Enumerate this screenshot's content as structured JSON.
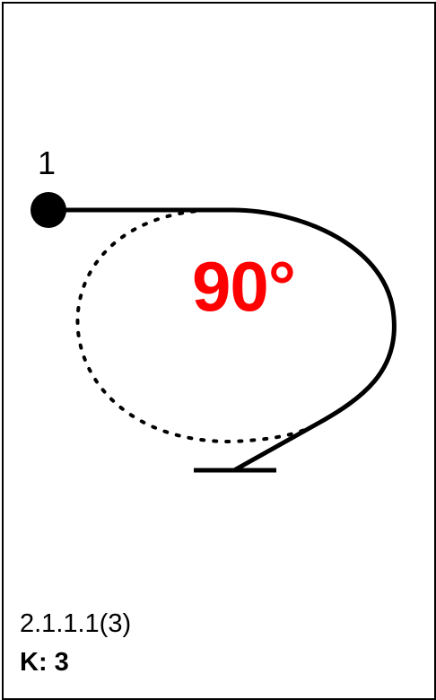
{
  "figure": {
    "start_number": "1",
    "angle_label": "90°",
    "angle_color": "#ff0000",
    "line_color": "#000000",
    "start-marker": "filled-circle",
    "end-marker": "horizontal-bar"
  },
  "catalog": {
    "number": "2.1.1.1(3)",
    "k_factor": "K: 3"
  }
}
